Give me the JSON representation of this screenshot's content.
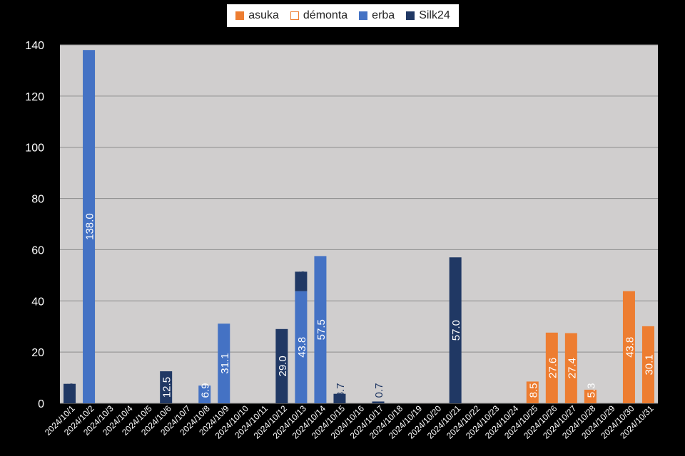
{
  "chart_data": {
    "type": "bar",
    "stacked": true,
    "title": "",
    "xlabel": "",
    "ylabel": "",
    "ylim": [
      0,
      140
    ],
    "yticks": [
      0,
      20,
      40,
      60,
      80,
      100,
      120,
      140
    ],
    "grid": true,
    "legend_position": "top",
    "categories": [
      "2024/10/1",
      "2024/10/2",
      "2024/10/3",
      "2024/10/4",
      "2024/10/5",
      "2024/10/6",
      "2024/10/7",
      "2024/10/8",
      "2024/10/9",
      "2024/10/10",
      "2024/10/11",
      "2024/10/12",
      "2024/10/13",
      "2024/10/14",
      "2024/10/15",
      "2024/10/16",
      "2024/10/17",
      "2024/10/18",
      "2024/10/19",
      "2024/10/20",
      "2024/10/21",
      "2024/10/22",
      "2024/10/23",
      "2024/10/24",
      "2024/10/25",
      "2024/10/26",
      "2024/10/27",
      "2024/10/28",
      "2024/10/29",
      "2024/10/30",
      "2024/10/31"
    ],
    "series": [
      {
        "name": "asuka",
        "color": "#ED7D31",
        "style": "filled",
        "values": [
          null,
          null,
          null,
          null,
          null,
          null,
          null,
          null,
          null,
          null,
          null,
          null,
          null,
          null,
          null,
          null,
          null,
          null,
          null,
          null,
          null,
          null,
          null,
          null,
          8.5,
          27.6,
          27.4,
          5.3,
          null,
          43.8,
          30.1
        ]
      },
      {
        "name": "démonta",
        "color": "#ED7D31",
        "style": "outline",
        "values": [
          null,
          null,
          null,
          null,
          null,
          null,
          null,
          null,
          null,
          null,
          null,
          null,
          null,
          null,
          null,
          null,
          null,
          null,
          null,
          null,
          null,
          null,
          null,
          null,
          null,
          null,
          null,
          null,
          null,
          null,
          null
        ]
      },
      {
        "name": "erba",
        "color": "#4472C4",
        "style": "filled",
        "values": [
          null,
          138.0,
          null,
          null,
          null,
          null,
          null,
          6.9,
          31.1,
          null,
          null,
          null,
          43.8,
          57.5,
          null,
          null,
          null,
          null,
          null,
          null,
          null,
          null,
          null,
          null,
          null,
          null,
          null,
          null,
          null,
          null,
          null
        ]
      },
      {
        "name": "Silk24",
        "color": "#203864",
        "style": "filled",
        "values": [
          7.6,
          null,
          null,
          null,
          null,
          12.5,
          null,
          null,
          null,
          null,
          null,
          29.0,
          7.6,
          null,
          3.7,
          null,
          0.7,
          null,
          null,
          null,
          57.0,
          null,
          null,
          null,
          null,
          null,
          null,
          null,
          null,
          null,
          null
        ]
      }
    ]
  }
}
